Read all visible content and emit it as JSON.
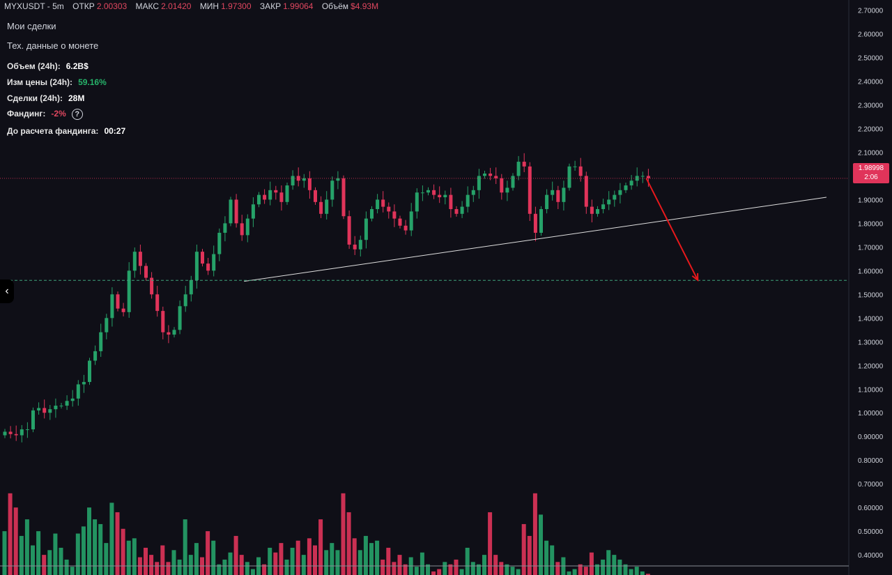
{
  "header": {
    "symbol": "MYXUSDT - 5m",
    "open_label": "ОТКР",
    "open_value": "2.00303",
    "high_label": "МАКС",
    "high_value": "2.01420",
    "low_label": "МИН",
    "low_value": "1.97300",
    "close_label": "ЗАКР",
    "close_value": "1.99064",
    "volume_label": "Объём",
    "volume_value": "$4.93M"
  },
  "menu": {
    "my_trades": "Мои сделки",
    "coin_data": "Тех. данные о монете"
  },
  "stats": {
    "volume_label": "Объем (24h):",
    "volume_value": "6.2B$",
    "change_label": "Изм цены  (24h):",
    "change_value": "59.16%",
    "trades_label": "Сделки (24h):",
    "trades_value": "28M",
    "funding_label": "Фандинг:",
    "funding_value": "-2%",
    "funding_help": "?",
    "countdown_label": "До расчета фандинга:",
    "countdown_value": "00:27"
  },
  "price_tag": {
    "price": "1.98998",
    "countdown": "2:06"
  },
  "colors": {
    "background": "#0f0f17",
    "up": "#26a269",
    "down": "#e0345a",
    "grid_text": "#d1d4dc",
    "support": "#3fa27a",
    "arrow": "#e8191c"
  },
  "chart_data": {
    "type": "candlestick",
    "yticks": [
      "2.70000",
      "2.60000",
      "2.50000",
      "2.40000",
      "2.30000",
      "2.20000",
      "2.10000",
      "2.00000",
      "1.90000",
      "1.80000",
      "1.70000",
      "1.60000",
      "1.50000",
      "1.40000",
      "1.30000",
      "1.20000",
      "1.10000",
      "1.00000",
      "0.90000",
      "0.80000",
      "0.70000",
      "0.60000",
      "0.50000",
      "0.40000"
    ],
    "ylim": [
      0.315,
      2.715
    ],
    "current_price": 1.98998,
    "support_level": 1.559,
    "trendline": {
      "from_index": 0.375,
      "from_price": 1.555,
      "to_index": 1.28,
      "to_price": 1.91
    },
    "projection_arrow": {
      "from_index": 1.0,
      "from_price": 1.99,
      "to_index": 1.08,
      "to_price": 1.56
    },
    "closes": [
      0.92,
      0.91,
      0.905,
      0.93,
      0.93,
      1.01,
      1.02,
      1.0,
      1.015,
      1.03,
      1.03,
      1.05,
      1.06,
      1.12,
      1.13,
      1.22,
      1.26,
      1.34,
      1.4,
      1.5,
      1.44,
      1.425,
      1.6,
      1.68,
      1.62,
      1.57,
      1.5,
      1.43,
      1.34,
      1.33,
      1.35,
      1.45,
      1.5,
      1.56,
      1.68,
      1.63,
      1.6,
      1.67,
      1.76,
      1.8,
      1.9,
      1.8,
      1.75,
      1.82,
      1.88,
      1.92,
      1.9,
      1.94,
      1.93,
      1.89,
      1.96,
      2.0,
      1.98,
      1.99,
      1.94,
      1.89,
      1.84,
      1.9,
      1.98,
      1.99,
      1.83,
      1.71,
      1.69,
      1.73,
      1.82,
      1.86,
      1.9,
      1.87,
      1.85,
      1.82,
      1.79,
      1.77,
      1.85,
      1.93,
      1.93,
      1.94,
      1.92,
      1.91,
      1.92,
      1.86,
      1.84,
      1.87,
      1.92,
      1.94,
      2.0,
      2.01,
      2.0,
      1.99,
      1.93,
      1.95,
      2.0,
      2.06,
      2.04,
      1.84,
      1.76,
      1.86,
      1.92,
      1.94,
      1.89,
      1.95,
      2.04,
      2.04,
      2.0,
      1.87,
      1.84,
      1.86,
      1.88,
      1.9,
      1.92,
      1.94,
      1.96,
      1.98,
      2.0,
      2.0,
      1.99
    ],
    "volumes": [
      0.5,
      0.66,
      0.6,
      0.48,
      0.55,
      0.44,
      0.5,
      0.4,
      0.42,
      0.49,
      0.43,
      0.38,
      0.35,
      0.49,
      0.52,
      0.6,
      0.55,
      0.53,
      0.45,
      0.62,
      0.58,
      0.51,
      0.46,
      0.47,
      0.39,
      0.43,
      0.4,
      0.37,
      0.44,
      0.37,
      0.42,
      0.38,
      0.55,
      0.4,
      0.45,
      0.39,
      0.5,
      0.46,
      0.36,
      0.38,
      0.41,
      0.48,
      0.4,
      0.37,
      0.34,
      0.39,
      0.36,
      0.43,
      0.41,
      0.45,
      0.38,
      0.43,
      0.46,
      0.4,
      0.47,
      0.44,
      0.55,
      0.42,
      0.45,
      0.42,
      0.66,
      0.58,
      0.47,
      0.42,
      0.48,
      0.45,
      0.46,
      0.38,
      0.43,
      0.37,
      0.4,
      0.36,
      0.39,
      0.35,
      0.41,
      0.36,
      0.33,
      0.34,
      0.37,
      0.36,
      0.38,
      0.34,
      0.43,
      0.37,
      0.36,
      0.4,
      0.58,
      0.4,
      0.37,
      0.36,
      0.35,
      0.34,
      0.53,
      0.48,
      0.66,
      0.57,
      0.46,
      0.44,
      0.37,
      0.39,
      0.33,
      0.34,
      0.36,
      0.35,
      0.41,
      0.36,
      0.38,
      0.42,
      0.4,
      0.38,
      0.36,
      0.34,
      0.35,
      0.33,
      0.32
    ]
  }
}
